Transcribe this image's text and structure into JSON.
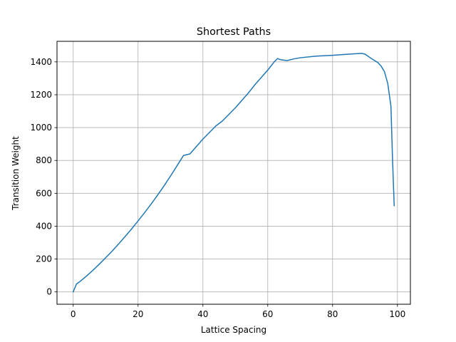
{
  "chart_data": {
    "type": "line",
    "title": "Shortest Paths",
    "xlabel": "Lattice Spacing",
    "ylabel": "Transition Weight",
    "xlim": [
      -5,
      104
    ],
    "ylim": [
      -75,
      1525
    ],
    "grid": true,
    "line_color": "#1f77b4",
    "x_ticks": [
      "0",
      "20",
      "40",
      "60",
      "80",
      "100"
    ],
    "y_ticks": [
      "0",
      "200",
      "400",
      "600",
      "800",
      "1000",
      "1200",
      "1400"
    ],
    "series": [
      {
        "x": [
          0,
          1,
          2,
          4,
          6,
          8,
          10,
          12,
          14,
          16,
          18,
          20,
          22,
          24,
          26,
          28,
          30,
          32,
          34,
          36,
          38,
          40,
          42,
          44,
          46,
          48,
          50,
          52,
          54,
          56,
          58,
          60,
          62,
          63,
          64,
          66,
          68,
          70,
          75,
          80,
          85,
          89,
          90,
          92,
          94,
          95,
          96,
          97,
          98,
          98.5,
          99
        ],
        "y": [
          0,
          48,
          62,
          95,
          130,
          168,
          208,
          248,
          292,
          337,
          383,
          432,
          482,
          534,
          588,
          645,
          705,
          767,
          830,
          840,
          885,
          930,
          970,
          1010,
          1040,
          1080,
          1120,
          1165,
          1210,
          1260,
          1305,
          1350,
          1400,
          1420,
          1413,
          1408,
          1418,
          1425,
          1435,
          1440,
          1447,
          1452,
          1447,
          1420,
          1395,
          1373,
          1340,
          1270,
          1130,
          800,
          525
        ]
      }
    ]
  }
}
